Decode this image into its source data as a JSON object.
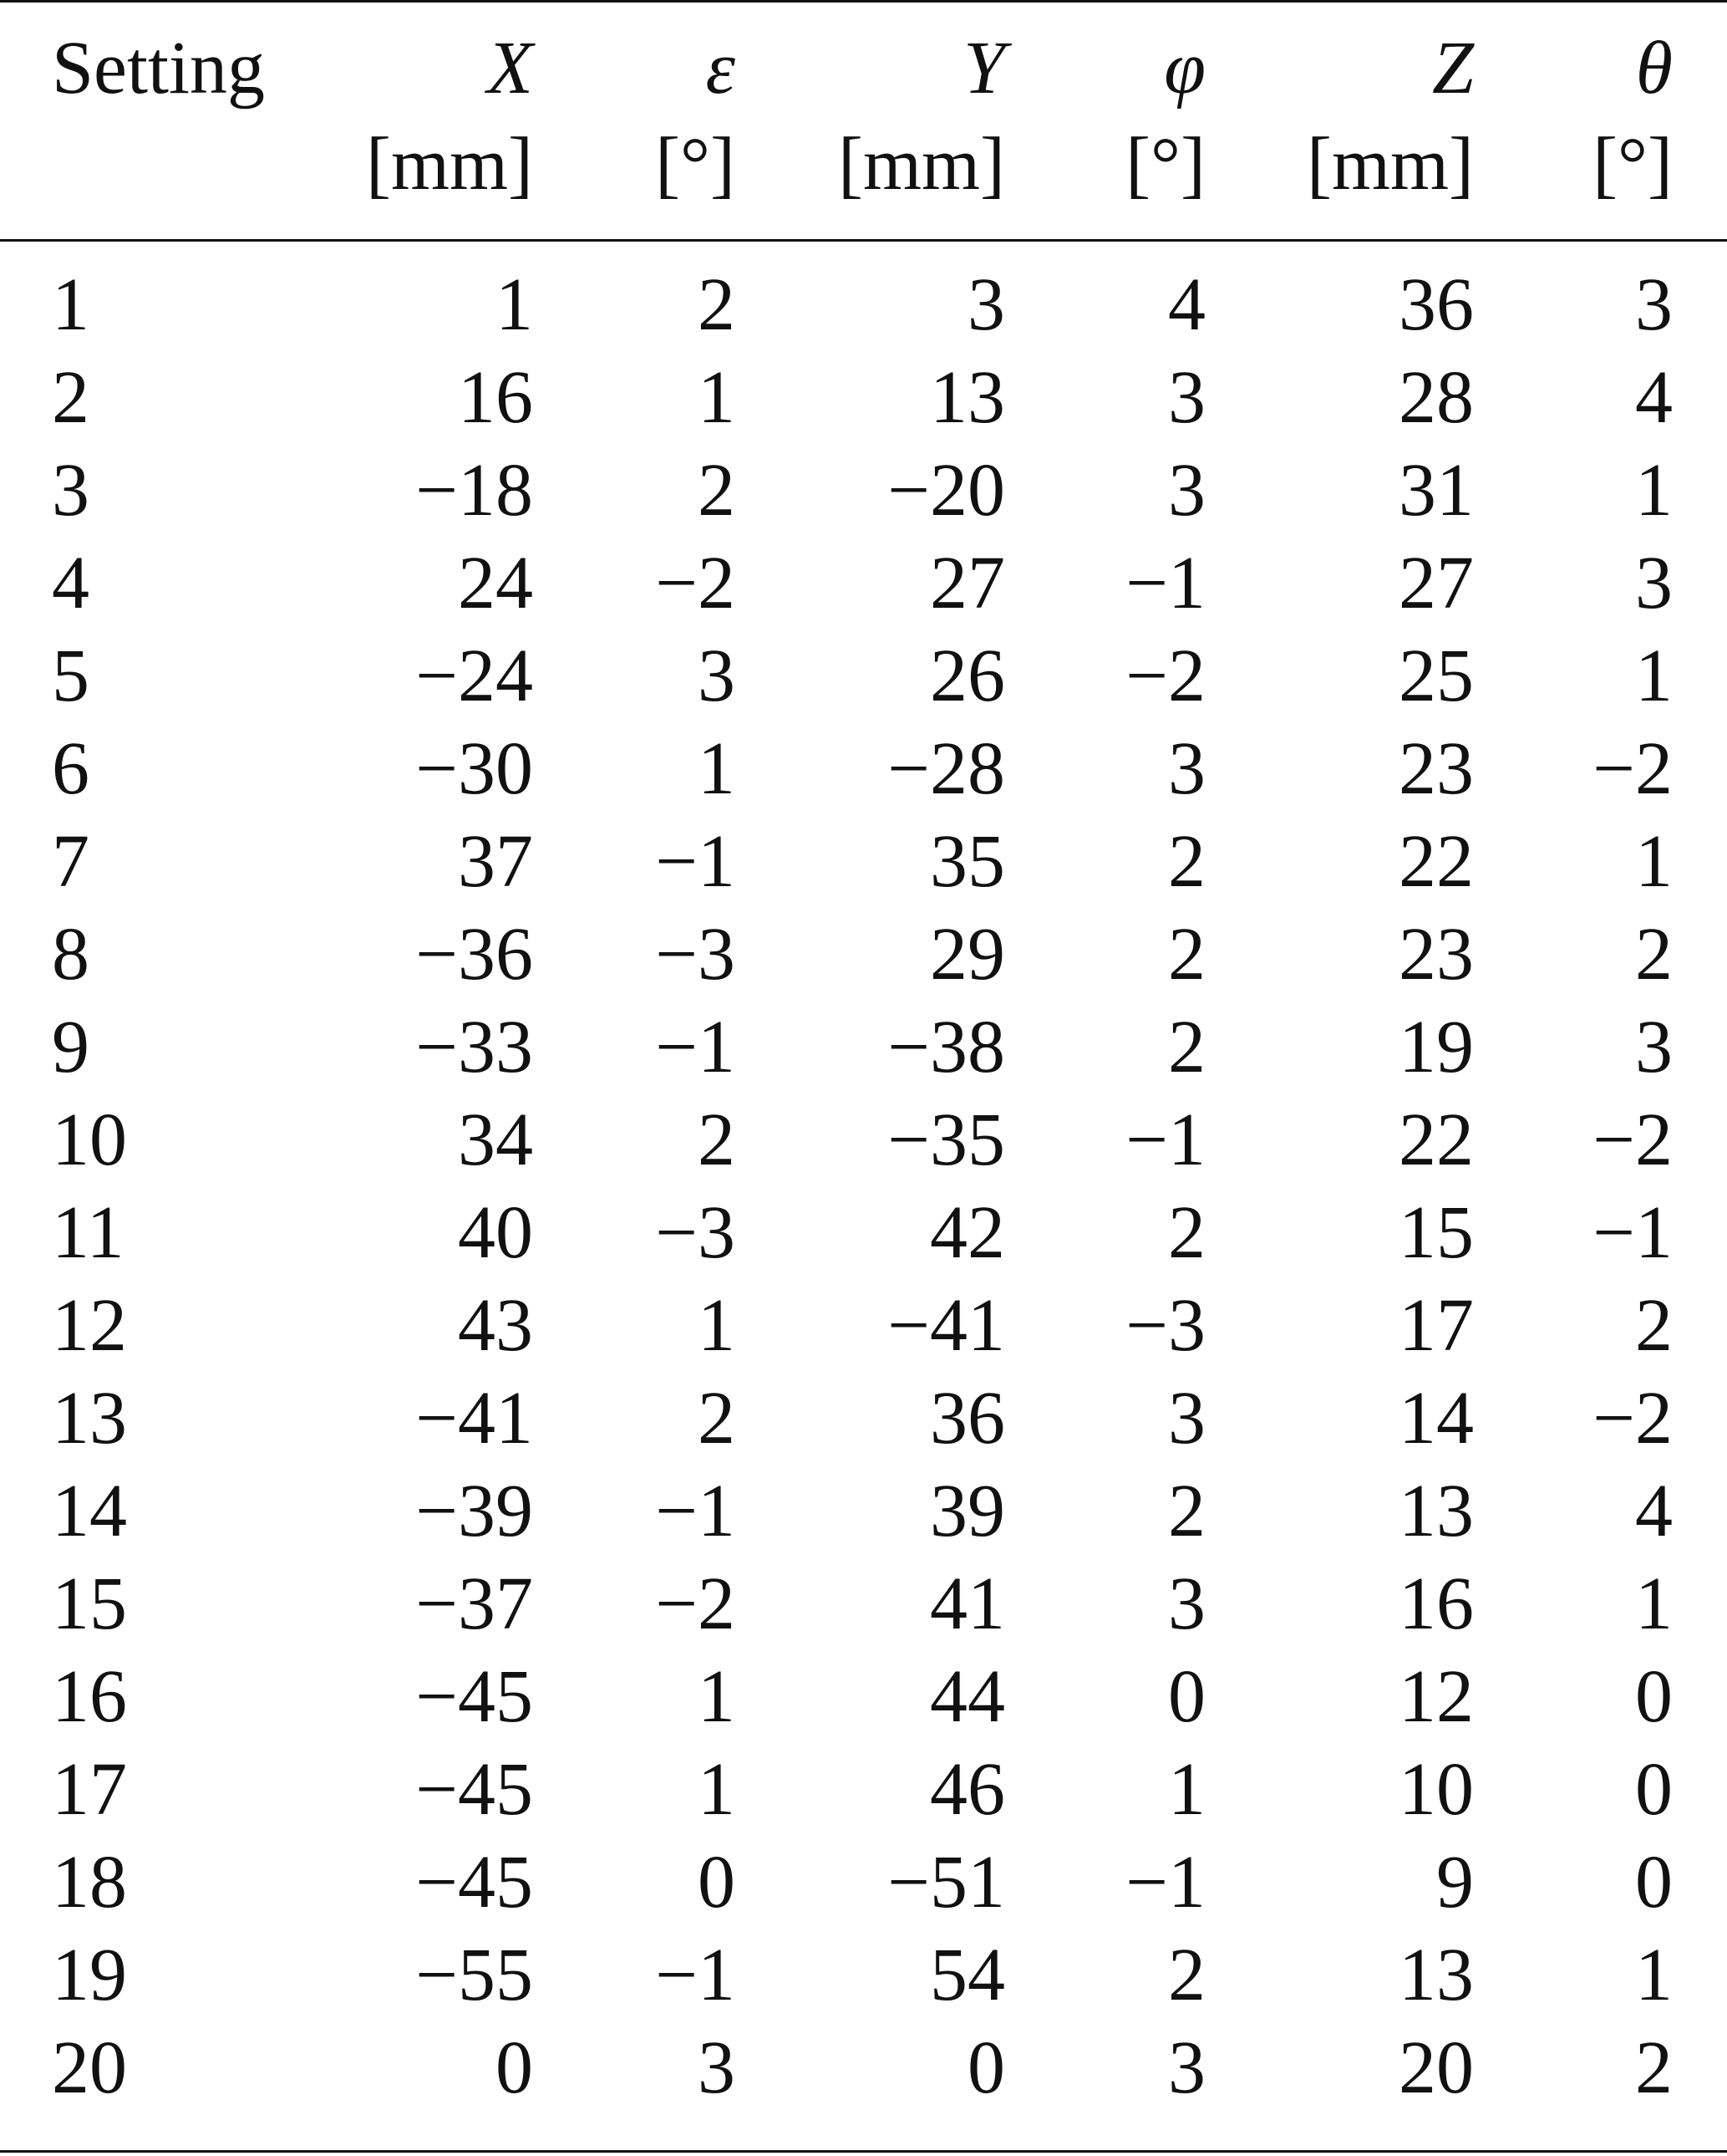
{
  "table": {
    "headers": [
      {
        "symbol": "Setting",
        "unit": ""
      },
      {
        "symbol": "X",
        "unit": "[mm]"
      },
      {
        "symbol": "ε",
        "unit": "[°]"
      },
      {
        "symbol": "Y",
        "unit": "[mm]"
      },
      {
        "symbol": "φ",
        "unit": "[°]"
      },
      {
        "symbol": "Z",
        "unit": "[mm]"
      },
      {
        "symbol": "θ",
        "unit": "[°]"
      }
    ],
    "rows": [
      [
        "1",
        "1",
        "2",
        "3",
        "4",
        "36",
        "3"
      ],
      [
        "2",
        "16",
        "1",
        "13",
        "3",
        "28",
        "4"
      ],
      [
        "3",
        "−18",
        "2",
        "−20",
        "3",
        "31",
        "1"
      ],
      [
        "4",
        "24",
        "−2",
        "27",
        "−1",
        "27",
        "3"
      ],
      [
        "5",
        "−24",
        "3",
        "26",
        "−2",
        "25",
        "1"
      ],
      [
        "6",
        "−30",
        "1",
        "−28",
        "3",
        "23",
        "−2"
      ],
      [
        "7",
        "37",
        "−1",
        "35",
        "2",
        "22",
        "1"
      ],
      [
        "8",
        "−36",
        "−3",
        "29",
        "2",
        "23",
        "2"
      ],
      [
        "9",
        "−33",
        "−1",
        "−38",
        "2",
        "19",
        "3"
      ],
      [
        "10",
        "34",
        "2",
        "−35",
        "−1",
        "22",
        "−2"
      ],
      [
        "11",
        "40",
        "−3",
        "42",
        "2",
        "15",
        "−1"
      ],
      [
        "12",
        "43",
        "1",
        "−41",
        "−3",
        "17",
        "2"
      ],
      [
        "13",
        "−41",
        "2",
        "36",
        "3",
        "14",
        "−2"
      ],
      [
        "14",
        "−39",
        "−1",
        "39",
        "2",
        "13",
        "4"
      ],
      [
        "15",
        "−37",
        "−2",
        "41",
        "3",
        "16",
        "1"
      ],
      [
        "16",
        "−45",
        "1",
        "44",
        "0",
        "12",
        "0"
      ],
      [
        "17",
        "−45",
        "1",
        "46",
        "1",
        "10",
        "0"
      ],
      [
        "18",
        "−45",
        "0",
        "−51",
        "−1",
        "9",
        "0"
      ],
      [
        "19",
        "−55",
        "−1",
        "54",
        "2",
        "13",
        "1"
      ],
      [
        "20",
        "0",
        "3",
        "0",
        "3",
        "20",
        "2"
      ]
    ]
  }
}
